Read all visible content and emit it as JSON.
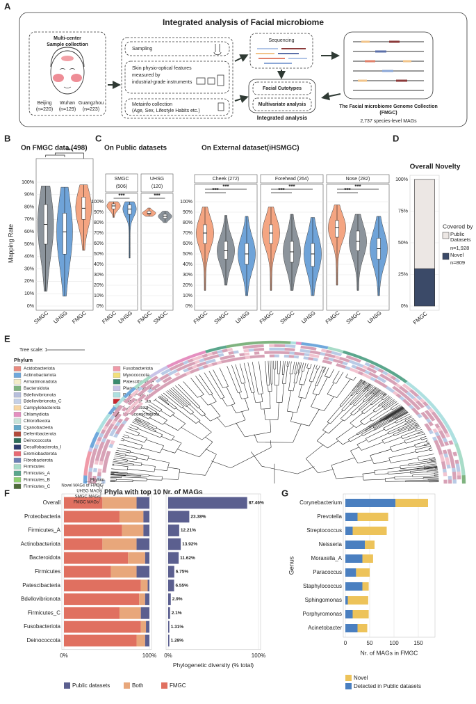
{
  "panel_labels": [
    "A",
    "B",
    "C",
    "D",
    "E",
    "F",
    "G"
  ],
  "panel_a": {
    "title": "Integrated analysis of Facial microbiome",
    "sample_collection": [
      "Multi-center",
      "Sample collection"
    ],
    "centers": [
      {
        "city": "Beijing",
        "n": "(n=220)"
      },
      {
        "city": "Wuhan",
        "n": "(n=129)"
      },
      {
        "city": "Guangzhou",
        "n": "(n=223)"
      }
    ],
    "steps": [
      [
        "Sampling"
      ],
      [
        "Skin physio-optical features",
        "measured by",
        "industrial-grade instruments"
      ],
      [
        "Metainfo collection",
        "(Age, Sex, Lifestyle Habits etc.)"
      ]
    ],
    "sequencing": "Sequencing",
    "analyses": [
      "Facial Cutotypes",
      "Multivariate analysis"
    ],
    "integrated": "Integrated analysis",
    "collection": [
      "The Facial microbiome Genome Collection",
      "(FMGC)"
    ],
    "collection_size": "2,737 species-level MAGs"
  },
  "panel_c_headers": [
    "On Public datasets",
    "On External dataset(iHSMGC)"
  ],
  "chart_data": [
    {
      "type": "violin",
      "title": "On FMGC data (498)",
      "ylabel": "Mapping Rate",
      "categories": [
        "SMGC",
        "UHSG",
        "FMGC"
      ],
      "colors": [
        "#8c949c",
        "#6fa3d8",
        "#f4a582"
      ],
      "min": [
        12,
        8,
        45
      ],
      "q1": [
        50,
        42,
        70
      ],
      "median": [
        66,
        60,
        79
      ],
      "q3": [
        82,
        75,
        88
      ],
      "max": [
        97,
        96,
        98
      ],
      "ylim": [
        0,
        100
      ],
      "yticks": [
        {
          "value": 0,
          "label": "0%"
        },
        {
          "value": 10,
          "label": "10%"
        },
        {
          "value": 20,
          "label": "20%"
        },
        {
          "value": 30,
          "label": "30%"
        },
        {
          "value": 40,
          "label": "40%"
        },
        {
          "value": 50,
          "label": "50%"
        },
        {
          "value": 60,
          "label": "60%"
        },
        {
          "value": 70,
          "label": "70%"
        },
        {
          "value": 80,
          "label": "80%"
        },
        {
          "value": 90,
          "label": "90%"
        },
        {
          "value": 100,
          "label": "100%"
        }
      ],
      "annotations": [
        "***"
      ],
      "grid": true
    },
    {
      "type": "violin",
      "title": [
        "SMGC",
        "(506)"
      ],
      "categories": [
        "FMGC",
        "UHSG"
      ],
      "colors": [
        "#f4a582",
        "#6fa3d8"
      ],
      "min": [
        85,
        46
      ],
      "q1": [
        93,
        88
      ],
      "median": [
        96,
        93
      ],
      "q3": [
        98,
        97
      ],
      "max": [
        100,
        100
      ],
      "ylim": [
        0,
        100
      ],
      "yticks": [
        {
          "value": 0,
          "label": "0%"
        },
        {
          "value": 10,
          "label": "10%"
        },
        {
          "value": 20,
          "label": "20%"
        },
        {
          "value": 30,
          "label": "30%"
        },
        {
          "value": 40,
          "label": "40%"
        },
        {
          "value": 50,
          "label": "50%"
        },
        {
          "value": 60,
          "label": "60%"
        },
        {
          "value": 70,
          "label": "70%"
        },
        {
          "value": 80,
          "label": "80%"
        },
        {
          "value": 90,
          "label": "90%"
        },
        {
          "value": 100,
          "label": "100%"
        }
      ],
      "annotations": [
        "***"
      ],
      "grid": true
    },
    {
      "type": "violin",
      "title": [
        "UHSG",
        "(120)"
      ],
      "categories": [
        "FMGC",
        "SMGC"
      ],
      "colors": [
        "#f4a582",
        "#8c949c"
      ],
      "min": [
        86,
        80
      ],
      "q1": [
        88,
        84
      ],
      "median": [
        89,
        86
      ],
      "q3": [
        91,
        88
      ],
      "max": [
        94,
        91
      ],
      "ylim": [
        0,
        100
      ],
      "yticks": [
        0,
        10,
        20,
        30,
        40,
        50,
        60,
        70,
        80,
        90,
        100
      ],
      "annotations": [
        "***"
      ],
      "grid": true
    },
    {
      "type": "violin",
      "title": "Cheek (272)",
      "categories": [
        "FMGC",
        "SMGC",
        "UHSG"
      ],
      "colors": [
        "#f4a582",
        "#8c949c",
        "#6fa3d8"
      ],
      "min": [
        15,
        20,
        10
      ],
      "q1": [
        60,
        45,
        40
      ],
      "median": [
        70,
        53,
        50
      ],
      "q3": [
        78,
        62,
        60
      ],
      "max": [
        95,
        87,
        86
      ],
      "ylim": [
        0,
        100
      ],
      "yticks": [
        {
          "value": 0,
          "label": "0%"
        },
        {
          "value": 10,
          "label": "10%"
        },
        {
          "value": 20,
          "label": "20%"
        },
        {
          "value": 30,
          "label": "30%"
        },
        {
          "value": 40,
          "label": "40%"
        },
        {
          "value": 50,
          "label": "50%"
        },
        {
          "value": 60,
          "label": "60%"
        },
        {
          "value": 70,
          "label": "70%"
        },
        {
          "value": 80,
          "label": "80%"
        },
        {
          "value": 90,
          "label": "90%"
        },
        {
          "value": 100,
          "label": "100%"
        }
      ],
      "annotations": [
        "***",
        "***"
      ],
      "grid": true
    },
    {
      "type": "violin",
      "title": "Forehead (264)",
      "categories": [
        "FMGC",
        "SMGC",
        "UHSG"
      ],
      "colors": [
        "#f4a582",
        "#8c949c",
        "#6fa3d8"
      ],
      "min": [
        15,
        15,
        10
      ],
      "q1": [
        60,
        42,
        38
      ],
      "median": [
        70,
        52,
        50
      ],
      "q3": [
        78,
        62,
        60
      ],
      "max": [
        95,
        88,
        85
      ],
      "ylim": [
        0,
        100
      ],
      "yticks": [
        0,
        10,
        20,
        30,
        40,
        50,
        60,
        70,
        80,
        90,
        100
      ],
      "annotations": [
        "***",
        "***"
      ],
      "grid": true
    },
    {
      "type": "violin",
      "title": "Nose (282)",
      "categories": [
        "FMGC",
        "SMGC",
        "UHSG"
      ],
      "colors": [
        "#f4a582",
        "#8c949c",
        "#6fa3d8"
      ],
      "min": [
        20,
        15,
        10
      ],
      "q1": [
        66,
        53,
        45
      ],
      "median": [
        75,
        62,
        55
      ],
      "q3": [
        82,
        72,
        65
      ],
      "max": [
        97,
        88,
        86
      ],
      "ylim": [
        0,
        100
      ],
      "yticks": [
        0,
        10,
        20,
        30,
        40,
        50,
        60,
        70,
        80,
        90,
        100
      ],
      "annotations": [
        "***",
        "***"
      ],
      "grid": true
    },
    {
      "type": "stacked_bar",
      "title": "Overall Novelty",
      "categories": [
        "FMGC"
      ],
      "legend_title": "Covered by",
      "series": [
        {
          "name": "Novel",
          "color": "#3b4a68",
          "values": [
            29.56
          ],
          "count_label": "n=809"
        },
        {
          "name": "Public Datasets",
          "color": "#ece7e4",
          "values": [
            70.44
          ],
          "count_label": "n=1,928"
        }
      ],
      "ylim": [
        0,
        100
      ],
      "yticks": [
        {
          "value": 0,
          "label": "0%"
        },
        {
          "value": 25,
          "label": "25%"
        },
        {
          "value": 50,
          "label": "50%"
        },
        {
          "value": 75,
          "label": "75%"
        },
        {
          "value": 100,
          "label": "100%"
        }
      ],
      "grid": true
    },
    {
      "type": "stacked_barh",
      "title": "Phyla with top 10 Nr. of MAGs",
      "categories": [
        "Overall",
        "Proteobacteria",
        "Firmicutes_A",
        "Actinobacteriota",
        "Bacteroidota",
        "Firmicutes",
        "Patescibacteria",
        "Bdellovibrionota",
        "Firmicutes_C",
        "Fusobacteriota",
        "Deinococcota"
      ],
      "series": [
        {
          "name": "Public datasets",
          "color": "#5b5f8f",
          "values": [
            15,
            7,
            7,
            15,
            5,
            15,
            2,
            5,
            10,
            4,
            5
          ]
        },
        {
          "name": "Both",
          "color": "#e8a77b",
          "values": [
            40,
            28,
            25,
            40,
            20,
            30,
            8,
            7,
            25,
            6,
            10
          ]
        },
        {
          "name": "FMGC",
          "color": "#e07060",
          "values": [
            45,
            65,
            68,
            45,
            75,
            55,
            90,
            88,
            65,
            90,
            85
          ]
        }
      ],
      "xlim": [
        0,
        100
      ],
      "xticks": [
        {
          "value": 0,
          "label": "0%"
        },
        {
          "value": 100,
          "label": "100%"
        }
      ],
      "grid": true
    },
    {
      "type": "barh",
      "xlabel": "Phylogenetic diversity  (% total)",
      "color": "#5b5f8f",
      "values": [
        87.46,
        23.38,
        12.21,
        13.92,
        11.62,
        6.75,
        6.55,
        2.9,
        2.1,
        1.31,
        1.28
      ],
      "value_labels": [
        "87.46%",
        "23.38%",
        "12.21%",
        "13.92%",
        "11.62%",
        "6.75%",
        "6.55%",
        "2.9%",
        "2.1%",
        "1.31%",
        "1.28%"
      ],
      "xlim": [
        0,
        100
      ],
      "xticks": [
        {
          "value": 0,
          "label": "0%"
        },
        {
          "value": 100,
          "label": "100%"
        }
      ],
      "grid": true
    },
    {
      "type": "stacked_barh",
      "ylabel": "Genus",
      "xlabel": "Nr. of MAGs in FMGC",
      "categories": [
        "Corynebacterium",
        "Prevotella",
        "Streptococcus",
        "Neisseria",
        "Moraxella_A",
        "Paracoccus",
        "Staphylococcus",
        "Sphingomonas",
        "Porphyromonas",
        "Acinetobacter"
      ],
      "series": [
        {
          "name": "Novel",
          "color": "#edc35a",
          "values": [
            67,
            63,
            70,
            20,
            22,
            28,
            13,
            42,
            33,
            20
          ]
        },
        {
          "name": "Detected in Public datasets",
          "color": "#4a7fc0",
          "values": [
            103,
            25,
            15,
            40,
            35,
            22,
            35,
            5,
            15,
            25
          ]
        }
      ],
      "xlim": [
        0,
        180
      ],
      "xticks": [
        0,
        50,
        100,
        150
      ],
      "grid": true
    }
  ],
  "tree": {
    "scale": "Tree scale: 1",
    "legend_title": "Phylum",
    "phyla": [
      {
        "name": "Acidobacteriota",
        "color": "#e98a7f"
      },
      {
        "name": "Actinobacteriota",
        "color": "#6fa8dc"
      },
      {
        "name": "Armatimonadota",
        "color": "#f3ecc8"
      },
      {
        "name": "Bacteroidota",
        "color": "#7fb37f"
      },
      {
        "name": "Bdellovibrionota",
        "color": "#b7bfdc"
      },
      {
        "name": "Bdellovibrionota_C",
        "color": "#c4d0e8"
      },
      {
        "name": "Campylobacterota",
        "color": "#f7d6a4"
      },
      {
        "name": "Chlamydiota",
        "color": "#e58fc0"
      },
      {
        "name": "Chloroflexota",
        "color": "#c6e3d8"
      },
      {
        "name": "Cyanobacteria",
        "color": "#64a8c8"
      },
      {
        "name": "Deferribacterota",
        "color": "#b24a3a"
      },
      {
        "name": "Deinococcota",
        "color": "#2e6e5a"
      },
      {
        "name": "Desulfobacterota_I",
        "color": "#2e3b6e"
      },
      {
        "name": "Eremiobacterota",
        "color": "#e86a74"
      },
      {
        "name": "Fibrobacterota",
        "color": "#6b7fb5"
      },
      {
        "name": "Firmicutes",
        "color": "#a8dcc8"
      },
      {
        "name": "Firmicutes_A",
        "color": "#5aa68c"
      },
      {
        "name": "Firmicutes_B",
        "color": "#90d070"
      },
      {
        "name": "Firmicutes_C",
        "color": "#4f6b3a"
      },
      {
        "name": "Fusobacteriota",
        "color": "#f09aa8"
      },
      {
        "name": "Myxococcota",
        "color": "#f2e07a"
      },
      {
        "name": "Patescibacteria",
        "color": "#3a8a6e"
      },
      {
        "name": "Planctomycetota",
        "color": "#c9c4e8"
      },
      {
        "name": "Proteobacteria",
        "color": "#aee0e0"
      },
      {
        "name": "Spirochaetota",
        "color": "#c82830"
      },
      {
        "name": "Synergistota",
        "color": "#b8a8a8"
      },
      {
        "name": "Verrucomicrobiota",
        "color": "#6b4b4b"
      }
    ],
    "rings": [
      "Phylum",
      "Novel MAGs of FMGC",
      "UHSG MAGs",
      "SMGC MAGs",
      "FMGC MAGs"
    ]
  }
}
